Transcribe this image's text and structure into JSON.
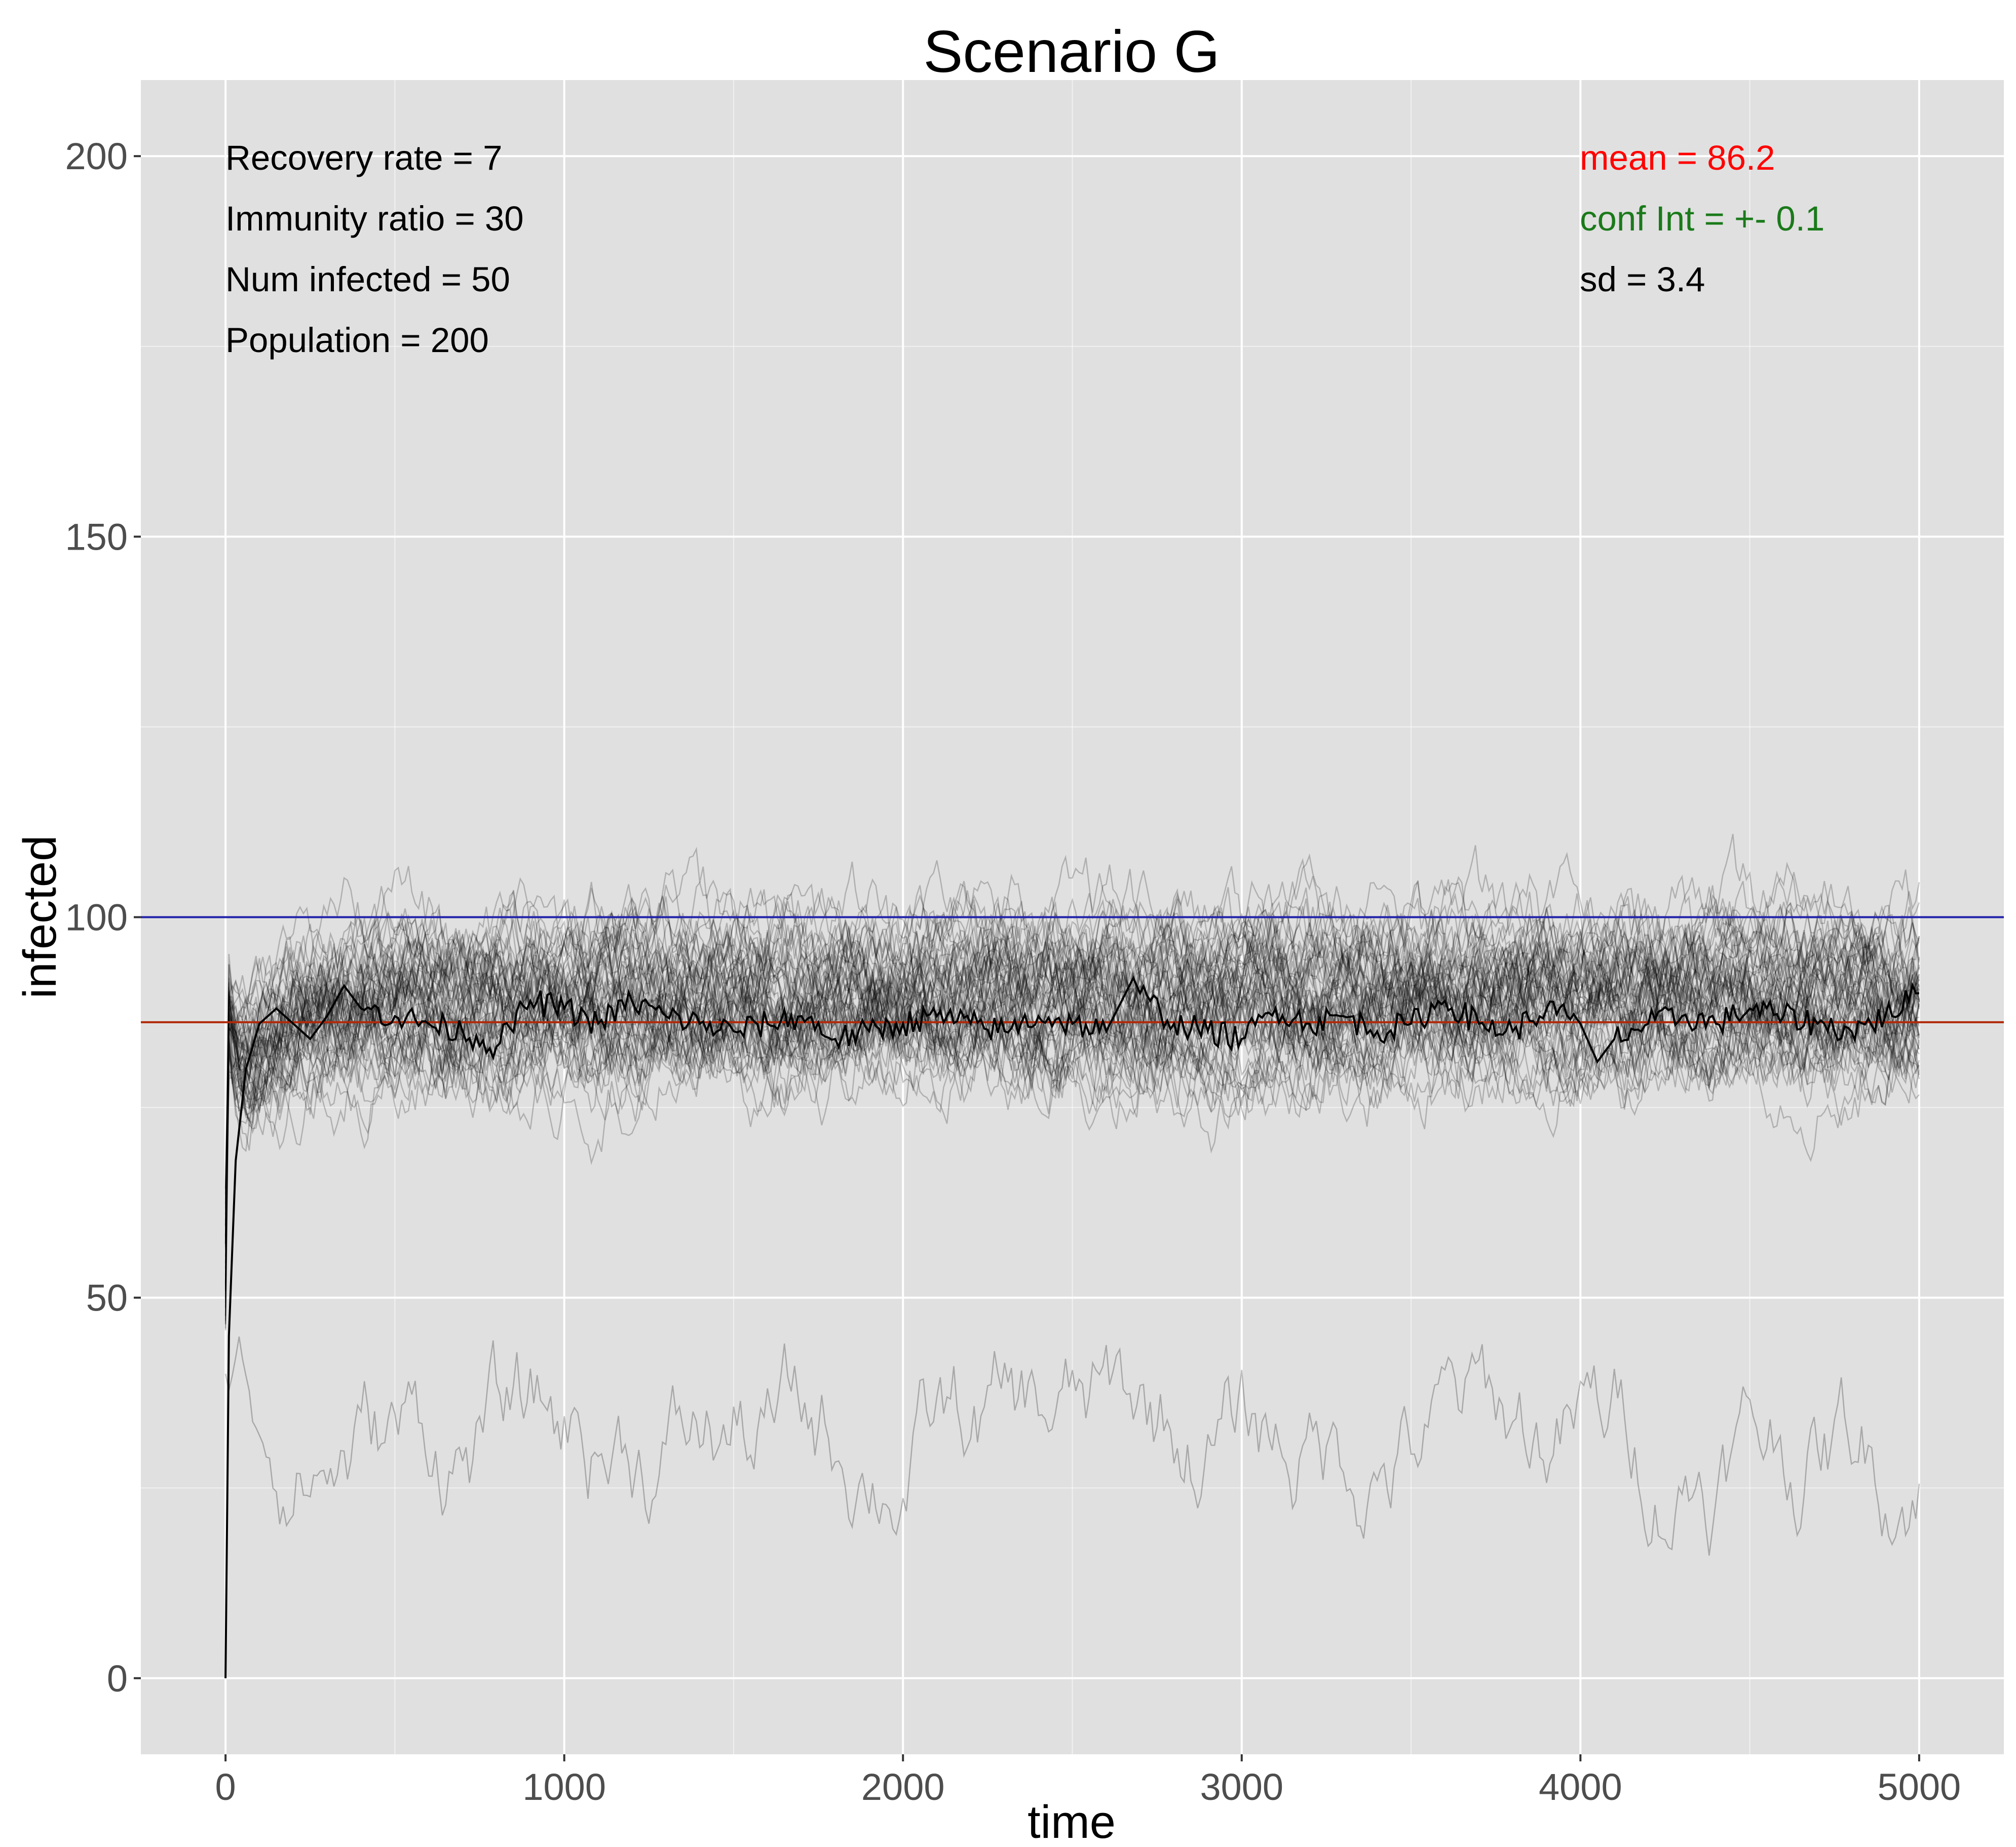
{
  "chart_data": {
    "type": "line",
    "title": "Scenario G",
    "xlabel": "time",
    "ylabel": "infected",
    "xlim": [
      -250,
      5250
    ],
    "ylim": [
      -10,
      210
    ],
    "x_ticks": [
      0,
      1000,
      2000,
      3000,
      4000,
      5000
    ],
    "y_ticks": [
      0,
      50,
      100,
      150,
      200
    ],
    "x_tick_labels": [
      "0",
      "1000",
      "2000",
      "3000",
      "4000",
      "5000"
    ],
    "y_tick_labels": [
      "0",
      "50",
      "100",
      "150",
      "200"
    ],
    "grid": true,
    "background_color": "#e0e0e0",
    "grid_color": "#ffffff",
    "parameters": [
      "Recovery rate = 7",
      "Immunity ratio = 30",
      "Num infected = 50",
      "Population = 200"
    ],
    "stats": [
      {
        "label": "mean = 86.2",
        "color": "#ff0000"
      },
      {
        "label": "conf Int = +- 0.1",
        "color": "#1a7a1a"
      },
      {
        "label": "sd = 3.4",
        "color": "#000000"
      }
    ],
    "reference_lines": [
      {
        "y": 100,
        "color": "#2222aa"
      },
      {
        "y": 86.2,
        "color": "#b22a0a"
      }
    ],
    "mean_series": {
      "color": "#000000",
      "points": [
        [
          0,
          0
        ],
        [
          10,
          45
        ],
        [
          30,
          68
        ],
        [
          60,
          80
        ],
        [
          100,
          86
        ],
        [
          150,
          88
        ],
        [
          200,
          86
        ],
        [
          250,
          84
        ],
        [
          300,
          87
        ],
        [
          350,
          91
        ],
        [
          400,
          88
        ],
        [
          500,
          87
        ],
        [
          600,
          86
        ],
        [
          700,
          85
        ],
        [
          800,
          83
        ],
        [
          900,
          89
        ],
        [
          1000,
          88
        ],
        [
          1100,
          86
        ],
        [
          1200,
          89
        ],
        [
          1300,
          87
        ],
        [
          1400,
          86
        ],
        [
          1500,
          85
        ],
        [
          1600,
          86
        ],
        [
          1700,
          87
        ],
        [
          1800,
          84
        ],
        [
          1900,
          85
        ],
        [
          2000,
          86
        ],
        [
          2100,
          87
        ],
        [
          2200,
          86
        ],
        [
          2300,
          85
        ],
        [
          2400,
          87
        ],
        [
          2500,
          86
        ],
        [
          2600,
          85
        ],
        [
          2680,
          92
        ],
        [
          2700,
          90
        ],
        [
          2800,
          86
        ],
        [
          2900,
          85
        ],
        [
          3000,
          84
        ],
        [
          3100,
          88
        ],
        [
          3200,
          86
        ],
        [
          3300,
          87
        ],
        [
          3400,
          85
        ],
        [
          3500,
          86
        ],
        [
          3600,
          89
        ],
        [
          3700,
          86
        ],
        [
          3800,
          85
        ],
        [
          3900,
          88
        ],
        [
          4000,
          86
        ],
        [
          4050,
          81
        ],
        [
          4100,
          84
        ],
        [
          4200,
          86
        ],
        [
          4300,
          87
        ],
        [
          4400,
          86
        ],
        [
          4500,
          88
        ],
        [
          4600,
          87
        ],
        [
          4700,
          86
        ],
        [
          4800,
          85
        ],
        [
          4900,
          87
        ],
        [
          5000,
          90
        ]
      ]
    },
    "simulation_runs": {
      "count": 60,
      "color": "#000000",
      "opacity": 0.22,
      "typical_range": [
        70,
        110
      ],
      "low_outlier_range": [
        3,
        60
      ]
    }
  }
}
